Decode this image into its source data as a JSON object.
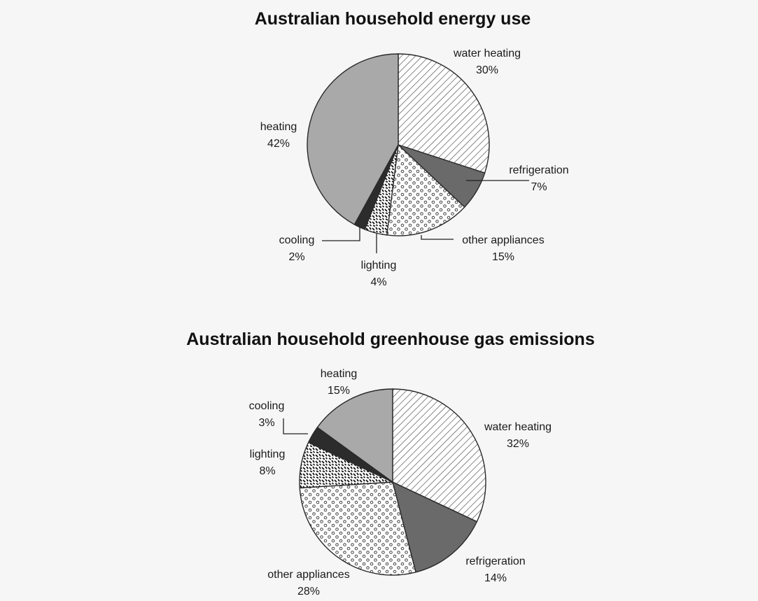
{
  "colors": {
    "heating": "#a9a9a9",
    "refrigeration": "#6a6a6a",
    "cooling": "#2c2c2c",
    "outline": "#2a2a2a"
  },
  "chart_data": [
    {
      "type": "pie",
      "title": "Australian household energy use",
      "slices": [
        {
          "label": "water heating",
          "value": 30,
          "display": "30%",
          "pattern": "diagonal-hatch"
        },
        {
          "label": "refrigeration",
          "value": 7,
          "display": "7%",
          "pattern": "dark-gray"
        },
        {
          "label": "other appliances",
          "value": 15,
          "display": "15%",
          "pattern": "circles"
        },
        {
          "label": "lighting",
          "value": 4,
          "display": "4%",
          "pattern": "dashes"
        },
        {
          "label": "cooling",
          "value": 2,
          "display": "2%",
          "pattern": "black"
        },
        {
          "label": "heating",
          "value": 42,
          "display": "42%",
          "pattern": "light-gray"
        }
      ]
    },
    {
      "type": "pie",
      "title": "Australian household greenhouse gas emissions",
      "slices": [
        {
          "label": "water heating",
          "value": 32,
          "display": "32%",
          "pattern": "diagonal-hatch"
        },
        {
          "label": "refrigeration",
          "value": 14,
          "display": "14%",
          "pattern": "dark-gray"
        },
        {
          "label": "other appliances",
          "value": 28,
          "display": "28%",
          "pattern": "circles"
        },
        {
          "label": "lighting",
          "value": 8,
          "display": "8%",
          "pattern": "dashes"
        },
        {
          "label": "cooling",
          "value": 3,
          "display": "3%",
          "pattern": "black"
        },
        {
          "label": "heating",
          "value": 15,
          "display": "15%",
          "pattern": "light-gray"
        }
      ]
    }
  ]
}
